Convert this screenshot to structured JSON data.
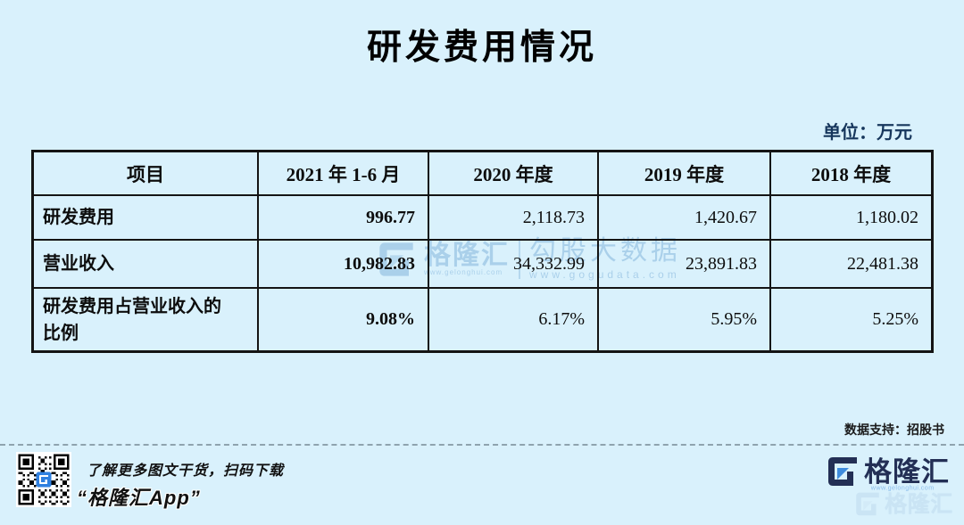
{
  "page": {
    "title": "研发费用情况",
    "unit_label": "单位：万元",
    "source_note": "数据支持：招股书"
  },
  "table": {
    "headers": [
      "项目",
      "2021 年 1-6 月",
      "2020 年度",
      "2019 年度",
      "2018 年度"
    ],
    "rows": [
      {
        "label": "研发费用",
        "values": [
          "996.77",
          "2,118.73",
          "1,420.67",
          "1,180.02"
        ]
      },
      {
        "label": "营业收入",
        "values": [
          "10,982.83",
          "34,332.99",
          "23,891.83",
          "22,481.38"
        ]
      },
      {
        "label": "研发费用占营业收入的比例",
        "values": [
          "9.08%",
          "6.17%",
          "5.95%",
          "5.25%"
        ]
      }
    ]
  },
  "watermark": {
    "brand": "格隆汇",
    "brand_url": "www.gelonghui.com",
    "product": "勾股大数据",
    "product_url": "www.gogudata.com"
  },
  "footer": {
    "qr_caption_line1": "了解更多图文干货，扫码下载",
    "qr_caption_line2": "“格隆汇App”",
    "brand": "格隆汇",
    "brand_url": "www.gelonghui.com"
  },
  "colors": {
    "background": "#d9f1fc",
    "table_border": "#141414",
    "unit_text": "#16365c",
    "watermark": "#a6cde9",
    "logo_navy": "#232f55",
    "logo_blue": "#3f8cdd",
    "note_text": "#1a1a1a"
  }
}
